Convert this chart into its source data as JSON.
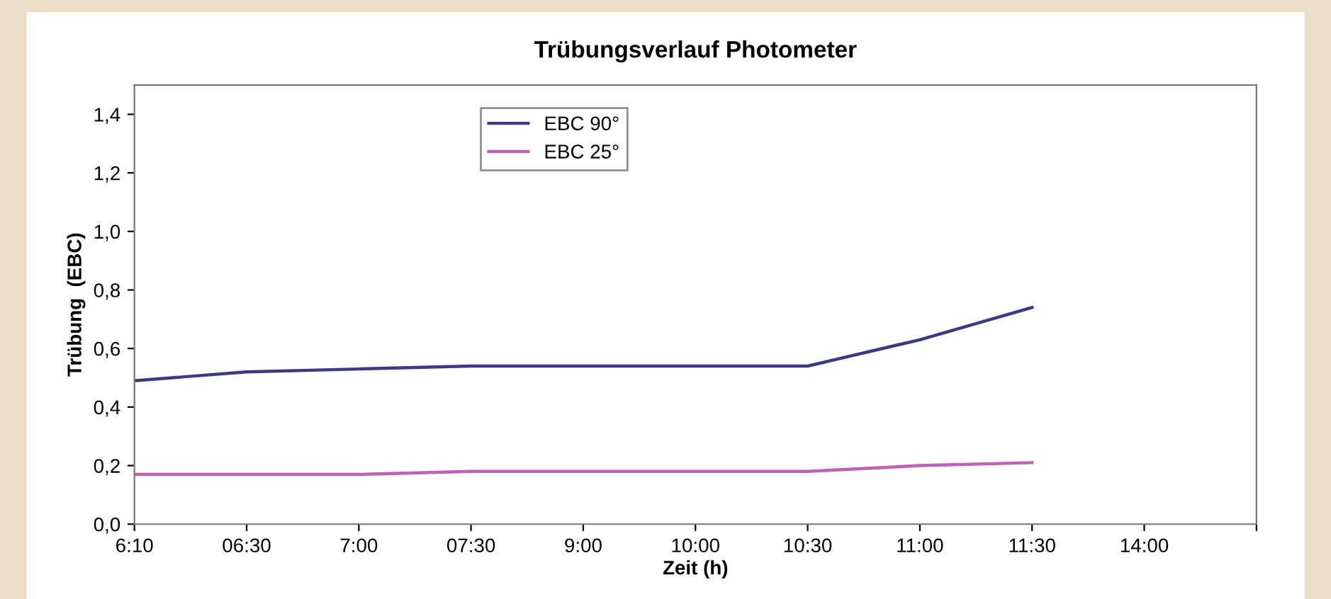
{
  "chart_data": {
    "type": "line",
    "title": "Trübungsverlauf Photometer",
    "xlabel": "Zeit (h)",
    "ylabel": "Trübung  (EBC)",
    "categories": [
      "6:10",
      "06:30",
      "7:00",
      "07:30",
      "9:00",
      "10:00",
      "10:30",
      "11:00",
      "11:30",
      "14:00",
      null
    ],
    "series": [
      {
        "name": "EBC 90°",
        "color": "#3a3a86",
        "values": [
          0.49,
          0.52,
          0.53,
          0.54,
          0.54,
          0.54,
          0.54,
          0.63,
          0.74,
          null,
          null
        ]
      },
      {
        "name": "EBC 25°",
        "color": "#c060b8",
        "values": [
          0.17,
          0.17,
          0.17,
          0.18,
          0.18,
          0.18,
          0.18,
          0.2,
          0.21,
          null,
          null
        ]
      }
    ],
    "ylim": [
      0,
      1.5
    ],
    "yticks": [
      {
        "value": 0,
        "label": "0,0"
      },
      {
        "value": 0.2,
        "label": "0,2"
      },
      {
        "value": 0.4,
        "label": "0,4"
      },
      {
        "value": 0.6,
        "label": "0,6"
      },
      {
        "value": 0.8,
        "label": "0,8"
      },
      {
        "value": 1.0,
        "label": "1,0"
      },
      {
        "value": 1.2,
        "label": "1,2"
      },
      {
        "value": 1.4,
        "label": "1,4"
      }
    ],
    "grid": false,
    "legend": "top left",
    "marker": "none",
    "line_style": "solid"
  }
}
